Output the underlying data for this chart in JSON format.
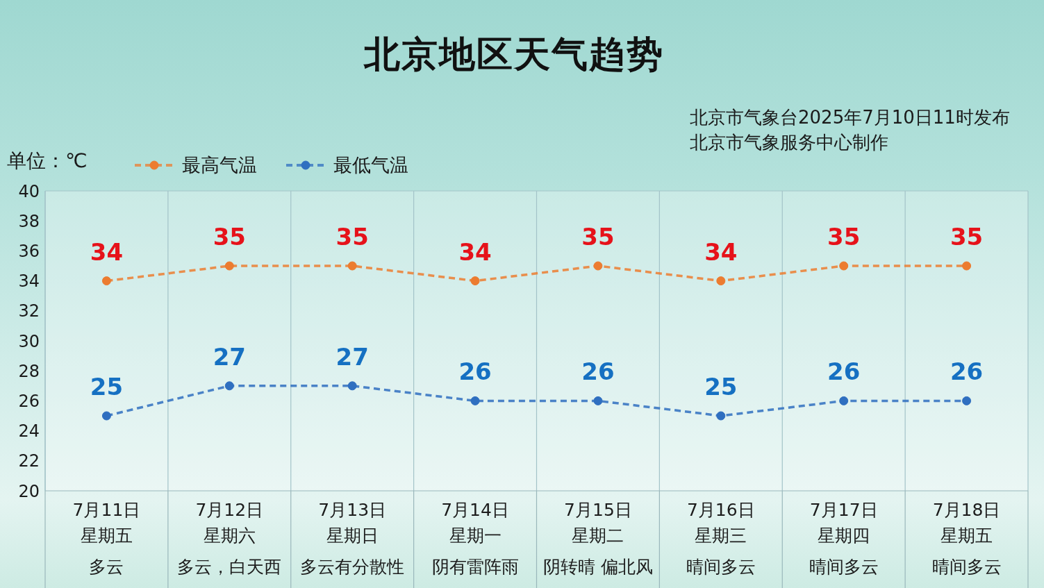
{
  "chart_data": {
    "type": "line",
    "title": "北京地区天气趋势",
    "ylabel": "单位：℃",
    "annotations": [
      "北京市气象台2025年7月10日11时发布",
      "北京市气象服务中心制作",
      "星期五",
      "星期六",
      "星期日",
      "星期一",
      "星期二",
      "星期三",
      "星期四",
      "星期五",
      "多云",
      "多云，白天西",
      "多云有分散性",
      "阴有雷阵雨",
      "阴转晴 偏北风",
      "晴间多云",
      "晴间多云",
      "晴间多云"
    ],
    "categories": [
      "7月11日",
      "7月12日",
      "7月13日",
      "7月14日",
      "7月15日",
      "7月16日",
      "7月17日",
      "7月18日"
    ],
    "series": [
      {
        "name": "最高气温",
        "color": "#ec7c30",
        "values": [
          34,
          35,
          35,
          34,
          35,
          34,
          35,
          35
        ]
      },
      {
        "name": "最低气温",
        "color": "#2f6fc0",
        "values": [
          25,
          27,
          27,
          26,
          26,
          25,
          26,
          26
        ]
      }
    ],
    "ylim": [
      20,
      40
    ],
    "yticks": [
      20,
      22,
      24,
      26,
      28,
      30,
      32,
      34,
      36,
      38,
      40
    ],
    "grid": "x",
    "legend": "top left",
    "marker": "circle",
    "line_style": "dashed",
    "data_labels": true
  }
}
